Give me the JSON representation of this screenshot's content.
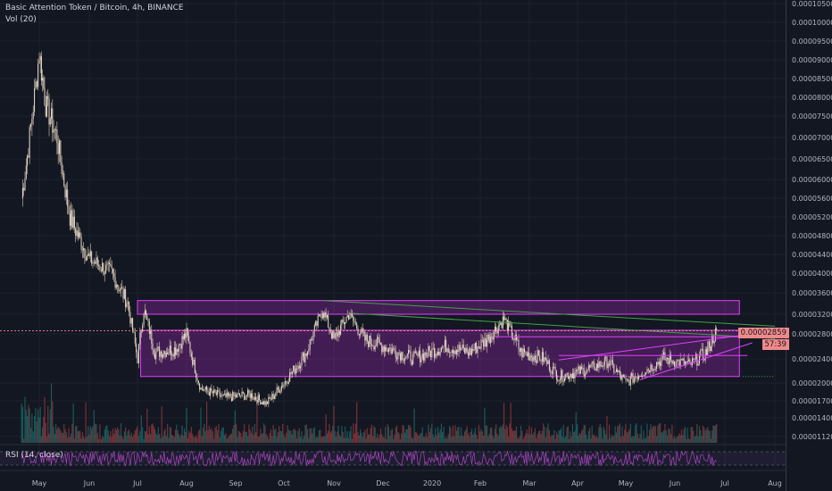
{
  "chart": {
    "title": "Basic Attention Token / Bitcoin, 4h, BINANCE",
    "volume_label": "Vol (20)",
    "rsi_label": "RSI (14, close)",
    "last_price": "0.00002859",
    "countdown": "57:39"
  },
  "chart_data": {
    "type": "candlestick",
    "title": "Basic Attention Token / Bitcoin, 4h, BINANCE",
    "x_ticks": [
      "May",
      "Jun",
      "Jul",
      "Aug",
      "Sep",
      "Oct",
      "Nov",
      "Dec",
      "2020",
      "Feb",
      "Mar",
      "Apr",
      "May",
      "Jun",
      "Jul",
      "Aug"
    ],
    "y_ticks": [
      "0.00010500",
      "0.00010000",
      "0.00009500",
      "0.00009000",
      "0.00008500",
      "0.00008000",
      "0.00007500",
      "0.00007000",
      "0.00006500",
      "0.00006000",
      "0.00005600",
      "0.00005200",
      "0.00004800",
      "0.00004400",
      "0.00004000",
      "0.00003600",
      "0.00003200",
      "0.00002800",
      "0.00002400",
      "0.00002000",
      "0.00001700",
      "0.00001400",
      "0.00001120"
    ],
    "y_scale": "log",
    "price_path": [
      [
        "Apr 20, 2019",
        5.6e-05
      ],
      [
        "Apr 25, 2019",
        7e-05
      ],
      [
        "May 1, 2019",
        9.2e-05
      ],
      [
        "May 5, 2019",
        7.8e-05
      ],
      [
        "May 12, 2019",
        7e-05
      ],
      [
        "May 20, 2019",
        5.2e-05
      ],
      [
        "Jun 1, 2019",
        4.3e-05
      ],
      [
        "Jun 15, 2019",
        4e-05
      ],
      [
        "Jun 25, 2019",
        3.4e-05
      ],
      [
        "Jul 1, 2019",
        2.4e-05
      ],
      [
        "Jul 5, 2019",
        3.3e-05
      ],
      [
        "Jul 12, 2019",
        2.5e-05
      ],
      [
        "Jul 25, 2019",
        2.55e-05
      ],
      [
        "Aug 1, 2019",
        2.8e-05
      ],
      [
        "Aug 10, 2019",
        1.9e-05
      ],
      [
        "Aug 25, 2019",
        1.75e-05
      ],
      [
        "Sep 10, 2019",
        1.8e-05
      ],
      [
        "Sep 20, 2019",
        1.65e-05
      ],
      [
        "Oct 1, 2019",
        2e-05
      ],
      [
        "Oct 15, 2019",
        2.5e-05
      ],
      [
        "Oct 25, 2019",
        3.3e-05
      ],
      [
        "Nov 1, 2019",
        2.7e-05
      ],
      [
        "Nov 10, 2019",
        3.2e-05
      ],
      [
        "Nov 20, 2019",
        2.7e-05
      ],
      [
        "Dec 1, 2019",
        2.6e-05
      ],
      [
        "Dec 20, 2019",
        2.4e-05
      ],
      [
        "Jan 10, 2020",
        2.6e-05
      ],
      [
        "Jan 25, 2020",
        2.5e-05
      ],
      [
        "Feb 5, 2020",
        2.7e-05
      ],
      [
        "Feb 15, 2020",
        3.1e-05
      ],
      [
        "Feb 25, 2020",
        2.5e-05
      ],
      [
        "Mar 10, 2020",
        2.4e-05
      ],
      [
        "Mar 20, 2020",
        2.1e-05
      ],
      [
        "Apr 5, 2020",
        2.2e-05
      ],
      [
        "Apr 20, 2020",
        2.35e-05
      ],
      [
        "May 1, 2020",
        2e-05
      ],
      [
        "May 10, 2020",
        2.15e-05
      ],
      [
        "May 25, 2020",
        2.4e-05
      ],
      [
        "Jun 10, 2020",
        2.3e-05
      ],
      [
        "Jun 20, 2020",
        2.5e-05
      ],
      [
        "Jun 26, 2020",
        2.86e-05
      ]
    ],
    "volume_pane": true,
    "rsi_pane": {
      "period": 14,
      "source": "close",
      "overbought": 70,
      "oversold": 30
    }
  },
  "colors": {
    "background": "#131722",
    "grid": "#1e222d",
    "axis_text": "#b2b5be",
    "candle_up": "#26a69a",
    "candle_down": "#ef5350",
    "zone_fill": "#9c27b0",
    "zone_stroke": "#e040fb",
    "trendline_green": "#43a047",
    "trendline_pink": "#e040fb",
    "rsi_line": "#ab47bc",
    "last_price_bg": "#f0898b"
  }
}
